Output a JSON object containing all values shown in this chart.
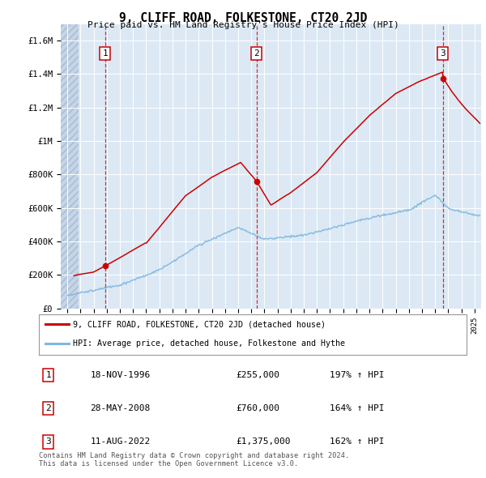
{
  "title": "9, CLIFF ROAD, FOLKESTONE, CT20 2JD",
  "subtitle": "Price paid vs. HM Land Registry's House Price Index (HPI)",
  "ylim": [
    0,
    1700000
  ],
  "yticks": [
    0,
    200000,
    400000,
    600000,
    800000,
    1000000,
    1200000,
    1400000,
    1600000
  ],
  "ytick_labels": [
    "£0",
    "£200K",
    "£400K",
    "£600K",
    "£800K",
    "£1M",
    "£1.2M",
    "£1.4M",
    "£1.6M"
  ],
  "xlim_start": 1993.5,
  "xlim_end": 2025.5,
  "hpi_color": "#7fb8e0",
  "price_color": "#cc0000",
  "plot_bg": "#dce9f5",
  "hatch_end": 1994.85,
  "sale_points": [
    {
      "year": 1996.88,
      "price": 255000,
      "label": "1"
    },
    {
      "year": 2008.4,
      "price": 760000,
      "label": "2"
    },
    {
      "year": 2022.6,
      "price": 1375000,
      "label": "3"
    }
  ],
  "legend_entries": [
    {
      "label": "9, CLIFF ROAD, FOLKESTONE, CT20 2JD (detached house)",
      "color": "#cc0000"
    },
    {
      "label": "HPI: Average price, detached house, Folkestone and Hythe",
      "color": "#7fb8e0"
    }
  ],
  "table_rows": [
    {
      "num": "1",
      "date": "18-NOV-1996",
      "price": "£255,000",
      "hpi": "197% ↑ HPI"
    },
    {
      "num": "2",
      "date": "28-MAY-2008",
      "price": "£760,000",
      "hpi": "164% ↑ HPI"
    },
    {
      "num": "3",
      "date": "11-AUG-2022",
      "price": "£1,375,000",
      "hpi": "162% ↑ HPI"
    }
  ],
  "footer": "Contains HM Land Registry data © Crown copyright and database right 2024.\nThis data is licensed under the Open Government Licence v3.0."
}
